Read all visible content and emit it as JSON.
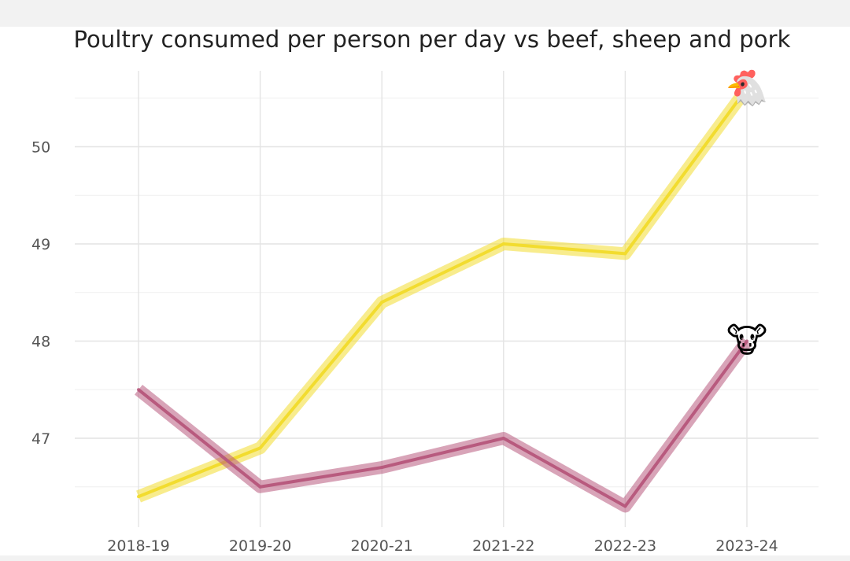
{
  "chart_data": {
    "type": "line",
    "title": "Poultry consumed per person per day vs beef, sheep and pork",
    "xlabel": "",
    "ylabel": "",
    "categories": [
      "2018-19",
      "2019-20",
      "2020-21",
      "2021-22",
      "2022-23",
      "2023-24"
    ],
    "ylim": [
      46.1,
      50.8
    ],
    "yticks": [
      47,
      48,
      49,
      50
    ],
    "grid": true,
    "legend": "none",
    "series": [
      {
        "values": [
          46.4,
          46.9,
          48.4,
          49.0,
          48.9,
          50.6
        ],
        "color": "#f2dc2f",
        "end_marker": "chicken-icon",
        "end_glyph": "🐔"
      },
      {
        "values": [
          47.5,
          46.5,
          46.7,
          47.0,
          46.3,
          48.0
        ],
        "color": "#b85a7e",
        "end_marker": "cow-icon",
        "end_glyph": "🐮"
      }
    ]
  }
}
